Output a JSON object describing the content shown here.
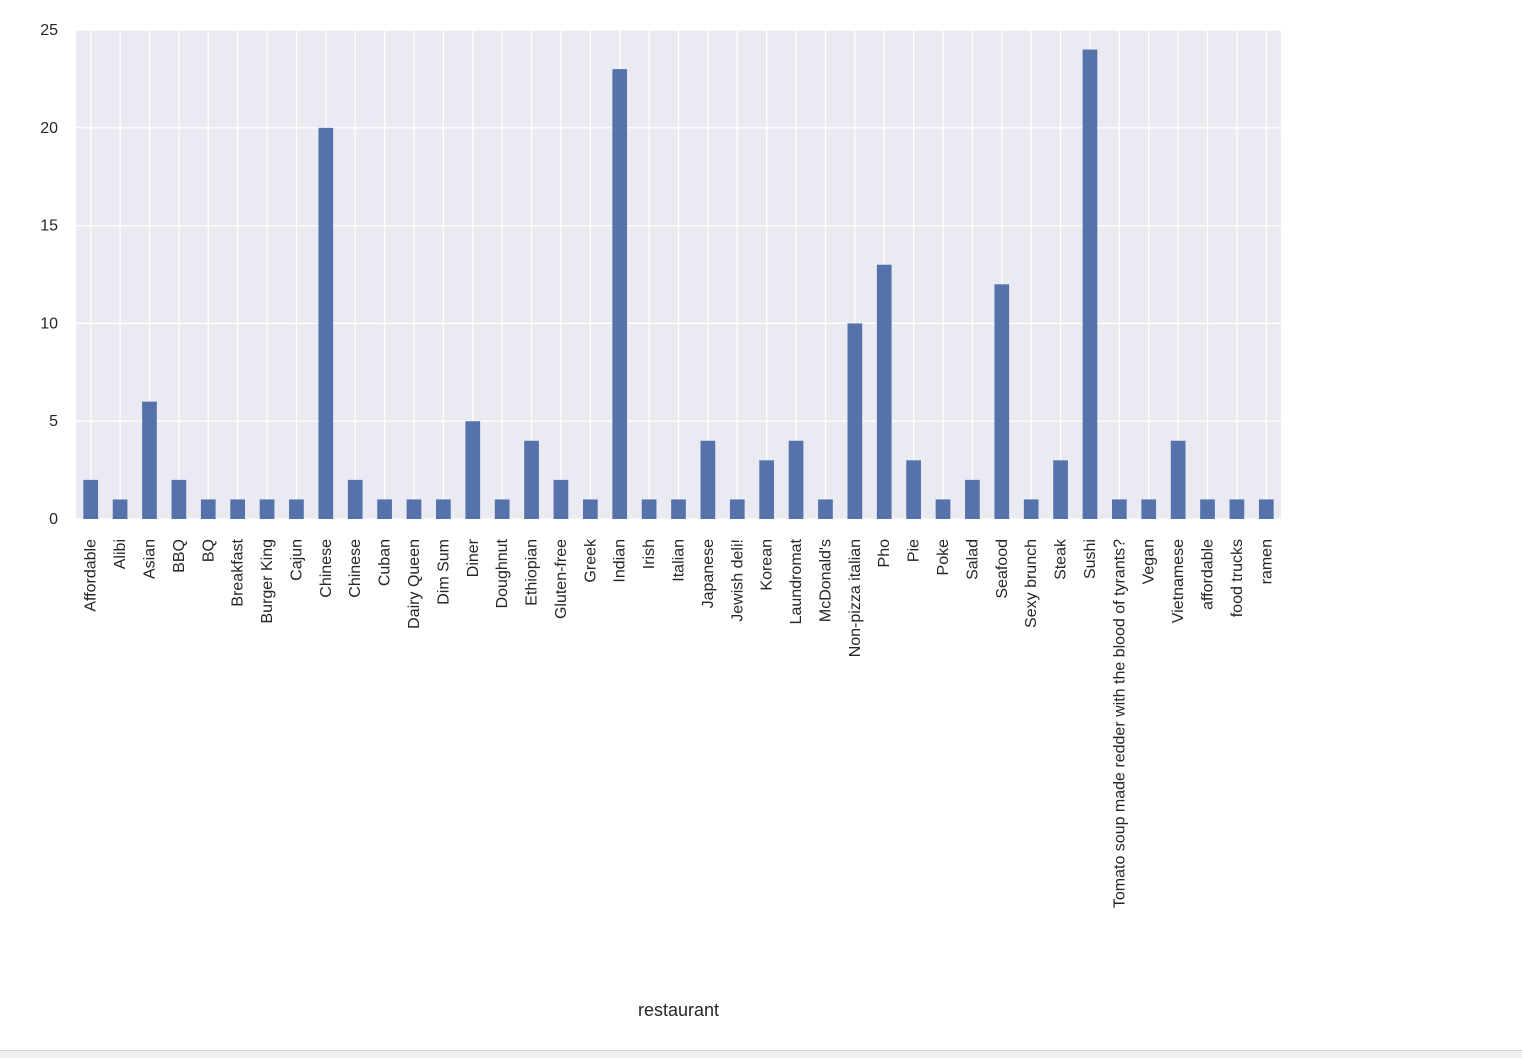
{
  "chart_data": {
    "type": "bar",
    "xlabel": "restaurant",
    "ylabel": "",
    "ylim": [
      0,
      25
    ],
    "yticks": [
      0,
      5,
      10,
      15,
      20,
      25
    ],
    "grid": true,
    "colors": {
      "bar": "#5572ab",
      "plot_background": "#eaeaf2",
      "grid": "#ffffff",
      "text": "#262626"
    },
    "categories": [
      "Affordable",
      "Alibi",
      "Asian",
      "BBQ",
      "BQ",
      "Breakfast",
      "Burger King",
      "Cajun",
      "Chinese",
      "Chinese ",
      "Cuban",
      "Dairy Queen",
      "Dim Sum",
      "Diner",
      "Doughnut",
      "Ethiopian",
      "Gluten-free",
      "Greek",
      "Indian",
      "Irish",
      "Italian",
      "Japanese",
      "Jewish deli!",
      "Korean",
      "Laundromat",
      "McDonald's",
      "Non-pizza italian",
      "Pho",
      "Pie",
      "Poke",
      "Salad",
      "Seafood",
      "Sexy brunch",
      "Steak",
      "Sushi",
      "Tomato soup made redder with the blood of tyrants?",
      "Vegan",
      "Vietnamese",
      "affordable",
      "food trucks",
      "ramen"
    ],
    "values": [
      2,
      1,
      6,
      2,
      1,
      1,
      1,
      1,
      20,
      2,
      1,
      1,
      1,
      5,
      1,
      4,
      2,
      1,
      23,
      1,
      1,
      4,
      1,
      3,
      4,
      1,
      10,
      13,
      3,
      1,
      2,
      12,
      1,
      3,
      24,
      1,
      1,
      4,
      1,
      1,
      1
    ]
  }
}
